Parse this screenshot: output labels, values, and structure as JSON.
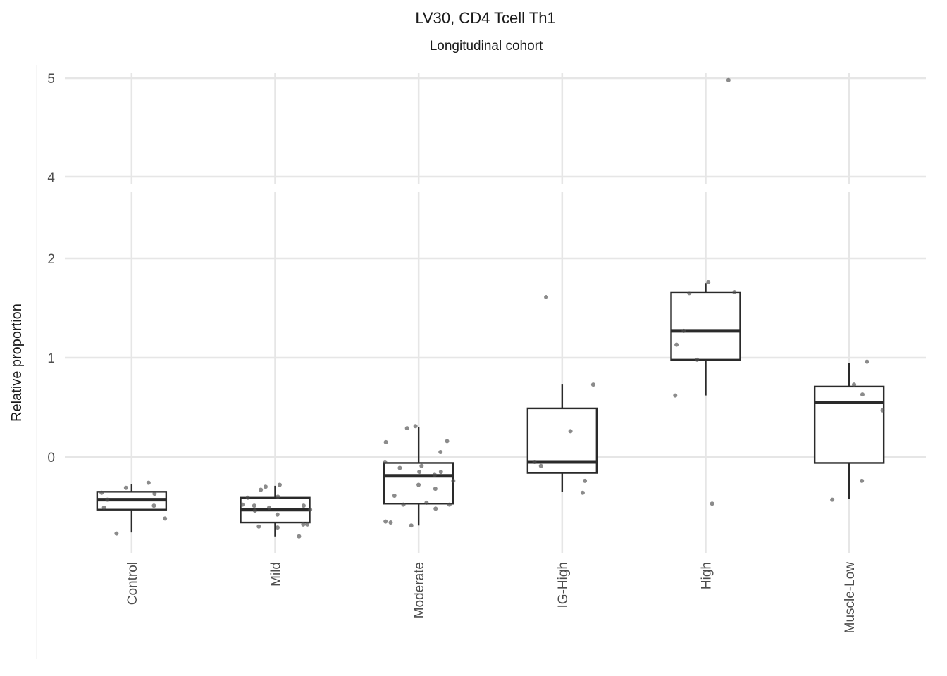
{
  "chart_data": {
    "type": "box",
    "title": "LV30, CD4 Tcell Th1",
    "subtitle": "Longitudinal cohort",
    "ylabel": "Relative proportion",
    "xlabel": "",
    "axis_break": {
      "upper_ticks": [
        4,
        5
      ],
      "lower_ticks": [
        0,
        1,
        2
      ]
    },
    "categories": [
      "Control",
      "Mild",
      "Moderate",
      "IG-High",
      "High",
      "Muscle-Low"
    ],
    "boxes": [
      {
        "category": "Control",
        "whisker_low": -0.76,
        "q1": -0.53,
        "median": -0.43,
        "q3": -0.35,
        "whisker_high": -0.27,
        "points": [
          -0.26,
          -0.36,
          -0.31,
          -0.37,
          -0.43,
          -0.49,
          -0.51,
          -0.62,
          -0.77
        ]
      },
      {
        "category": "Mild",
        "whisker_low": -0.8,
        "q1": -0.66,
        "median": -0.53,
        "q3": -0.41,
        "whisker_high": -0.29,
        "points": [
          -0.28,
          -0.3,
          -0.33,
          -0.4,
          -0.41,
          -0.48,
          -0.49,
          -0.49,
          -0.51,
          -0.53,
          -0.54,
          -0.58,
          -0.68,
          -0.68,
          -0.7,
          -0.71,
          -0.8
        ]
      },
      {
        "category": "Moderate",
        "whisker_low": -0.69,
        "q1": -0.47,
        "median": -0.19,
        "q3": -0.06,
        "whisker_high": 0.3,
        "points": [
          0.31,
          0.29,
          0.16,
          0.15,
          0.05,
          -0.05,
          -0.09,
          -0.11,
          -0.15,
          -0.15,
          -0.18,
          -0.24,
          -0.28,
          -0.32,
          -0.39,
          -0.46,
          -0.48,
          -0.48,
          -0.52,
          -0.65,
          -0.66,
          -0.69
        ]
      },
      {
        "category": "IG-High",
        "whisker_low": -0.35,
        "q1": -0.16,
        "median": -0.05,
        "q3": 0.49,
        "whisker_high": 0.73,
        "points": [
          1.61,
          0.73,
          0.26,
          -0.05,
          -0.09,
          -0.24,
          -0.36
        ]
      },
      {
        "category": "High",
        "whisker_low": 0.62,
        "q1": 0.98,
        "median": 1.27,
        "q3": 1.66,
        "whisker_high": 1.75,
        "points": [
          4.98,
          1.76,
          1.66,
          1.65,
          1.27,
          1.13,
          0.98,
          0.62,
          -0.47
        ]
      },
      {
        "category": "Muscle-Low",
        "whisker_low": -0.42,
        "q1": -0.06,
        "median": 0.55,
        "q3": 0.71,
        "whisker_high": 0.95,
        "points": [
          0.96,
          0.73,
          0.63,
          0.47,
          -0.24,
          -0.43
        ]
      }
    ],
    "grid": true,
    "legend": "none"
  }
}
